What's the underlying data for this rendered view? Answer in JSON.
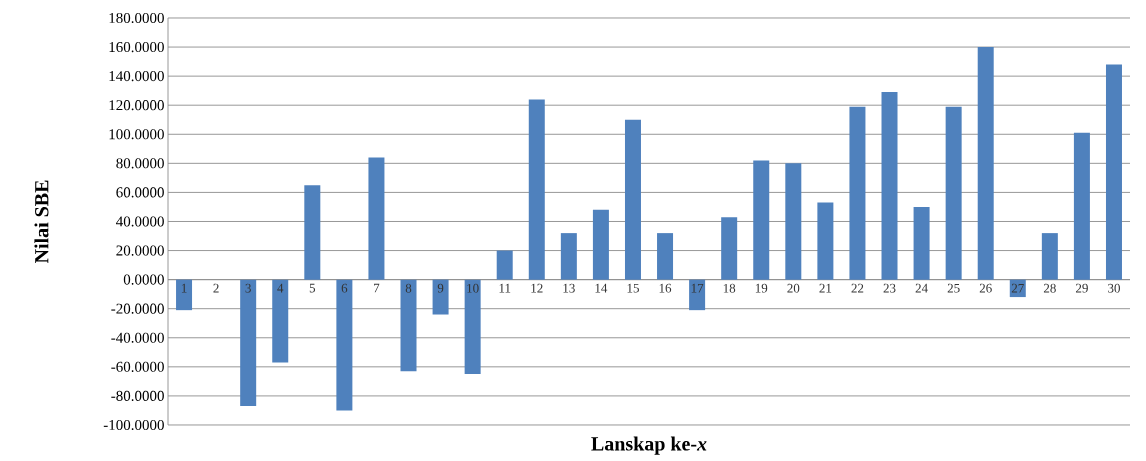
{
  "chart_data": {
    "type": "bar",
    "xlabel": "Lanskap ke-*x*",
    "ylabel": "Nilai SBE",
    "categories": [
      "1",
      "2",
      "3",
      "4",
      "5",
      "6",
      "7",
      "8",
      "9",
      "10",
      "11",
      "12",
      "13",
      "14",
      "15",
      "16",
      "17",
      "18",
      "19",
      "20",
      "21",
      "22",
      "23",
      "24",
      "25",
      "26",
      "27",
      "28",
      "29",
      "30"
    ],
    "values": [
      -21,
      0,
      -87,
      -57,
      65,
      -90,
      84,
      -63,
      -24,
      -65,
      20,
      124,
      32,
      48,
      110,
      32,
      -21,
      43,
      82,
      80,
      53,
      119,
      129,
      50,
      119,
      160,
      -12,
      32,
      101,
      148
    ],
    "color": "#4f81bd",
    "ylim": [
      -100,
      180
    ],
    "yticks": [
      {
        "value": -100,
        "label": "-100.0000"
      },
      {
        "value": -80,
        "label": "-80.0000"
      },
      {
        "value": -60,
        "label": "-60.0000"
      },
      {
        "value": -40,
        "label": "-40.0000"
      },
      {
        "value": -20,
        "label": "-20.0000"
      },
      {
        "value": 0,
        "label": "0.0000"
      },
      {
        "value": 20,
        "label": "20.0000"
      },
      {
        "value": 40,
        "label": "40.0000"
      },
      {
        "value": 60,
        "label": "60.0000"
      },
      {
        "value": 80,
        "label": "80.0000"
      },
      {
        "value": 100,
        "label": "100.0000"
      },
      {
        "value": 120,
        "label": "120.0000"
      },
      {
        "value": 140,
        "label": "140.0000"
      },
      {
        "value": 160,
        "label": "160.0000"
      },
      {
        "value": 180,
        "label": "180.0000"
      }
    ],
    "grid": "y"
  }
}
